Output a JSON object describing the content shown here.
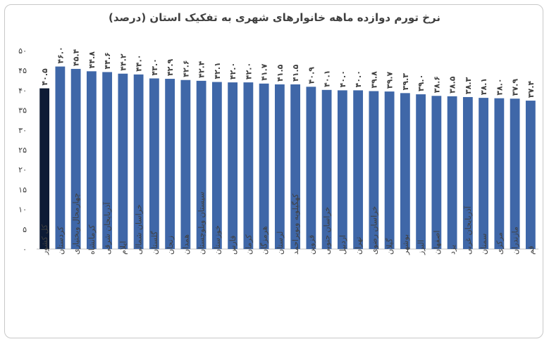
{
  "chart_data": {
    "type": "bar",
    "title": "نرخ تورم دوازده ماهه خانوارهای شهری به تفکیک استان (درصد)",
    "xlabel": "",
    "ylabel": "",
    "ylim": [
      0,
      50
    ],
    "yticks": [
      0,
      5,
      10,
      15,
      20,
      25,
      30,
      35,
      40,
      45,
      50
    ],
    "ytick_labels": [
      "۰",
      "۵",
      "۱۰",
      "۱۵",
      "۲۰",
      "۲۵",
      "۳۰",
      "۳۵",
      "۴۰",
      "۴۵",
      "۵۰"
    ],
    "grid": false,
    "categories": [
      "کل کشور",
      "کردستان",
      "چهارمحال وبختیاری",
      "کرمانشاه",
      "آذربایجان شرقی",
      "ایلام",
      "خراسان شمالی",
      "گلستان",
      "زنجان",
      "همدان",
      "سیستان وبلوچستان",
      "خوزستان",
      "فارس",
      "کرمان",
      "هرمزگان",
      "لرستان",
      "کهگیلویه وبویراحمد",
      "قزوین",
      "خراسان جنوبی",
      "اردبیل",
      "تهران",
      "خراسان رضوی",
      "گیلان",
      "بوشهر",
      "البرز",
      "اصفهان",
      "یزد",
      "آذربایجان غربی",
      "سمنان",
      "مرکزی",
      "مازندران",
      "قم"
    ],
    "values": [
      40.5,
      46.0,
      45.4,
      44.8,
      44.6,
      44.2,
      44.0,
      43.0,
      42.9,
      42.6,
      42.4,
      42.1,
      42.0,
      42.0,
      41.7,
      41.5,
      41.5,
      40.9,
      40.1,
      40.0,
      40.0,
      39.8,
      39.7,
      39.3,
      39.0,
      38.6,
      38.5,
      38.3,
      38.1,
      38.0,
      37.9,
      37.4
    ],
    "value_labels": [
      "۴۰.۵",
      "۴۶.۰",
      "۴۵.۴",
      "۴۴.۸",
      "۴۴.۶",
      "۴۴.۲",
      "۴۴.۰",
      "۴۳.۰",
      "۴۲.۹",
      "۴۲.۶",
      "۴۲.۴",
      "۴۲.۱",
      "۴۲.۰",
      "۴۲.۰",
      "۴۱.۷",
      "۴۱.۵",
      "۴۱.۵",
      "۴۰.۹",
      "۴۰.۱",
      "۴۰.۰",
      "۴۰.۰",
      "۳۹.۸",
      "۳۹.۷",
      "۳۹.۳",
      "۳۹.۰",
      "۳۸.۶",
      "۳۸.۵",
      "۳۸.۳",
      "۳۸.۱",
      "۳۸.۰",
      "۳۷.۹",
      "۳۷.۴"
    ],
    "colors": {
      "highlight": "#0d1b35",
      "bar": "#3f67a8",
      "axis": "#bfbfbf",
      "text": "#404040"
    }
  }
}
